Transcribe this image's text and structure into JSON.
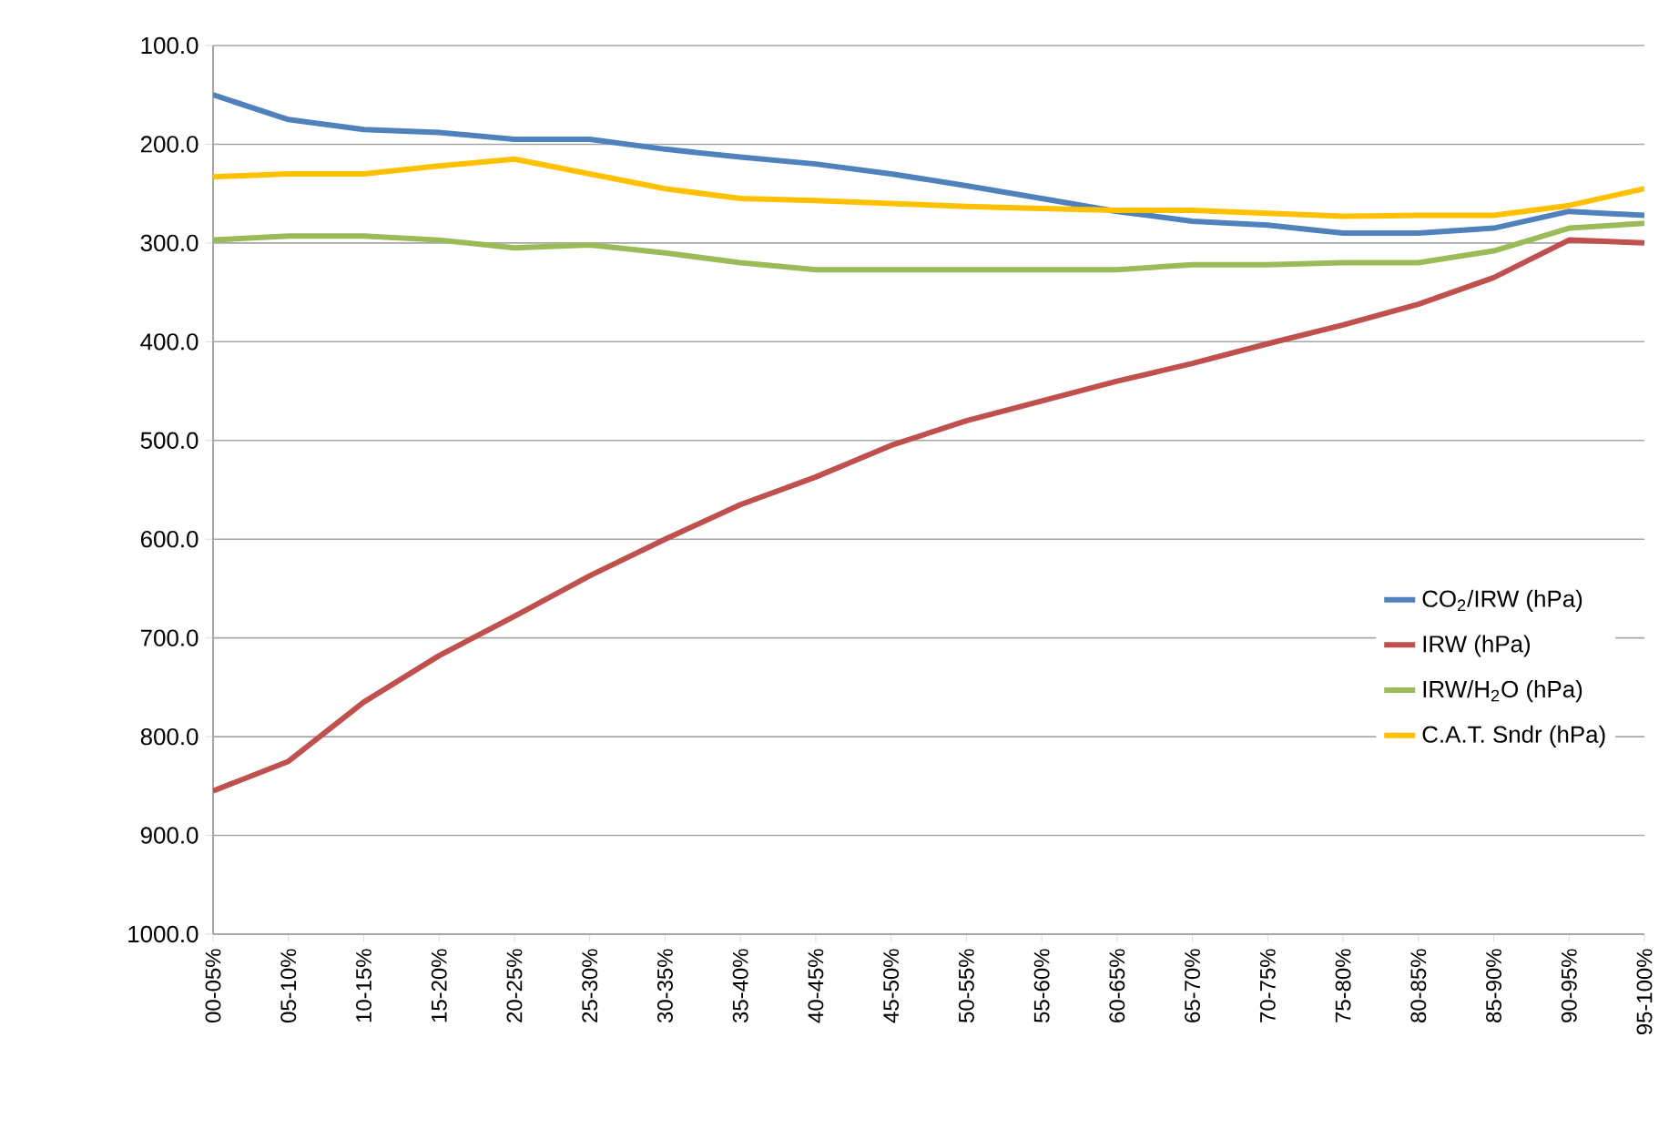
{
  "chart_data": {
    "type": "line",
    "categories": [
      "00-05%",
      "05-10%",
      "10-15%",
      "15-20%",
      "20-25%",
      "25-30%",
      "30-35%",
      "35-40%",
      "40-45%",
      "45-50%",
      "50-55%",
      "55-60%",
      "60-65%",
      "65-70%",
      "70-75%",
      "75-80%",
      "80-85%",
      "85-90%",
      "90-95%",
      "95-100%"
    ],
    "series": [
      {
        "name": "CO$_{2}$/IRW (hPa)",
        "color": "#4f81bd",
        "values": [
          150,
          175,
          185,
          188,
          195,
          195,
          205,
          213,
          220,
          230,
          242,
          255,
          268,
          278,
          282,
          290,
          290,
          285,
          268,
          272
        ]
      },
      {
        "name": "IRW (hPa)",
        "color": "#c0504d",
        "values": [
          855,
          825,
          765,
          718,
          678,
          637,
          600,
          565,
          537,
          505,
          480,
          460,
          440,
          422,
          402,
          383,
          362,
          335,
          297,
          300
        ]
      },
      {
        "name": "IRW/H$_{2}$O (hPa)",
        "color": "#9bbb59",
        "values": [
          297,
          293,
          293,
          297,
          305,
          302,
          310,
          320,
          327,
          327,
          327,
          327,
          327,
          322,
          322,
          320,
          320,
          308,
          285,
          280
        ]
      },
      {
        "name": "C.A.T. Sndr (hPa)",
        "color": "#ffc000",
        "values": [
          233,
          230,
          230,
          222,
          215,
          230,
          245,
          255,
          257,
          260,
          263,
          265,
          267,
          267,
          270,
          273,
          272,
          272,
          262,
          245
        ]
      }
    ],
    "ylim": [
      1000,
      100
    ],
    "yticks": [
      {
        "value": 100,
        "label": "100.0"
      },
      {
        "value": 200,
        "label": "200.0"
      },
      {
        "value": 300,
        "label": "300.0"
      },
      {
        "value": 400,
        "label": "400.0"
      },
      {
        "value": 500,
        "label": "500.0"
      },
      {
        "value": 600,
        "label": "600.0"
      },
      {
        "value": 700,
        "label": "700.0"
      },
      {
        "value": 800,
        "label": "800.0"
      },
      {
        "value": 900,
        "label": "900.0"
      },
      {
        "value": 1000,
        "label": "1000.0"
      }
    ],
    "grid": "y",
    "legend": "right",
    "marker": "none",
    "line_style": "solid"
  }
}
